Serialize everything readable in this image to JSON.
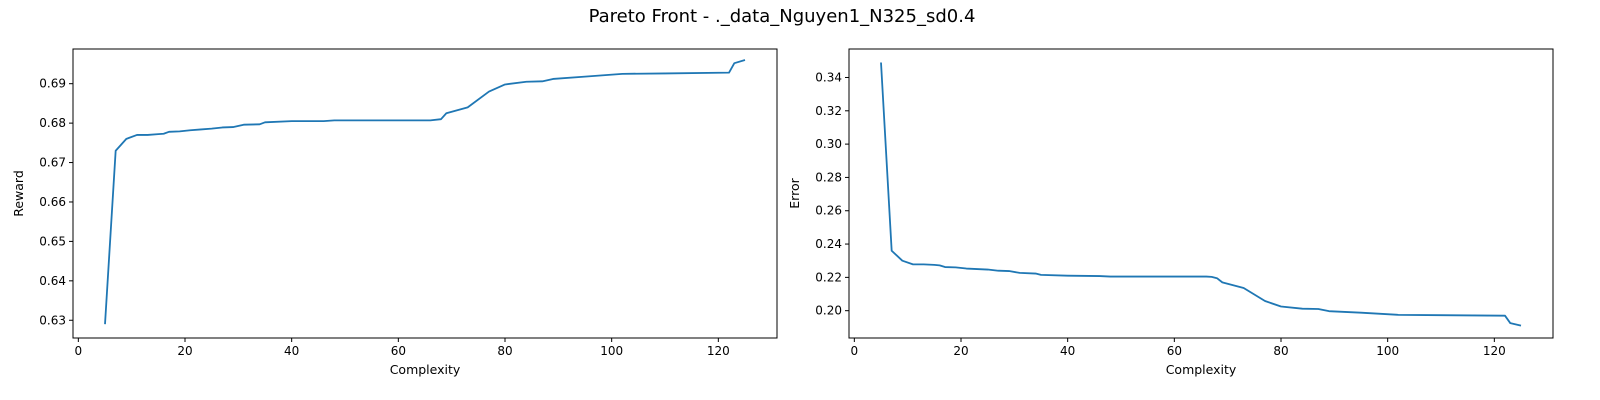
{
  "figure": {
    "title": "Pareto Front - ._data_Nguyen1_N325_sd0.4"
  },
  "colors": {
    "series": "#1f77b4",
    "axis": "#000000",
    "text": "#000000"
  },
  "chart_data": [
    {
      "type": "line",
      "xlabel": "Complexity",
      "ylabel": "Reward",
      "xlim": [
        -1.0,
        131.0
      ],
      "ylim": [
        0.6255,
        0.6988
      ],
      "xticks": [
        0,
        20,
        40,
        60,
        80,
        100,
        120
      ],
      "xtick_labels": [
        "0",
        "20",
        "40",
        "60",
        "80",
        "100",
        "120"
      ],
      "yticks": [
        0.63,
        0.64,
        0.65,
        0.66,
        0.67,
        0.68,
        0.69
      ],
      "ytick_labels": [
        "0.63",
        "0.64",
        "0.65",
        "0.66",
        "0.67",
        "0.68",
        "0.69"
      ],
      "grid": false,
      "series": [
        {
          "x": [
            5,
            7,
            9,
            11,
            13,
            15,
            16,
            17,
            19,
            21,
            23,
            25,
            27,
            29,
            31,
            34,
            35,
            40,
            46,
            48,
            50,
            55,
            60,
            66,
            68,
            69,
            73,
            77,
            80,
            84,
            87,
            89,
            95,
            102,
            110,
            122,
            123,
            125
          ],
          "values": [
            0.629,
            0.673,
            0.676,
            0.677,
            0.677,
            0.6772,
            0.6773,
            0.6778,
            0.6779,
            0.6782,
            0.6784,
            0.6786,
            0.6789,
            0.679,
            0.6796,
            0.6797,
            0.6802,
            0.6805,
            0.6805,
            0.6807,
            0.6807,
            0.6807,
            0.6807,
            0.6807,
            0.681,
            0.6825,
            0.684,
            0.688,
            0.6898,
            0.6905,
            0.6906,
            0.6912,
            0.6918,
            0.6925,
            0.6926,
            0.6928,
            0.6952,
            0.696
          ]
        }
      ]
    },
    {
      "type": "line",
      "xlabel": "Complexity",
      "ylabel": "Error",
      "xlim": [
        -1.0,
        131.0
      ],
      "ylim": [
        0.1836,
        0.3571
      ],
      "xticks": [
        0,
        20,
        40,
        60,
        80,
        100,
        120
      ],
      "xtick_labels": [
        "0",
        "20",
        "40",
        "60",
        "80",
        "100",
        "120"
      ],
      "yticks": [
        0.2,
        0.22,
        0.24,
        0.26,
        0.28,
        0.3,
        0.32,
        0.34
      ],
      "ytick_labels": [
        "0.20",
        "0.22",
        "0.24",
        "0.26",
        "0.28",
        "0.30",
        "0.32",
        "0.34"
      ],
      "grid": false,
      "series": [
        {
          "x": [
            5,
            7,
            9,
            11,
            13,
            15,
            16,
            17,
            19,
            21,
            23,
            25,
            27,
            29,
            31,
            34,
            35,
            40,
            46,
            48,
            50,
            55,
            60,
            66,
            67,
            68,
            69,
            73,
            77,
            80,
            84,
            87,
            89,
            95,
            102,
            110,
            122,
            123,
            125
          ],
          "values": [
            0.349,
            0.236,
            0.23,
            0.2278,
            0.2278,
            0.2275,
            0.2272,
            0.2262,
            0.226,
            0.2253,
            0.225,
            0.2247,
            0.224,
            0.2238,
            0.2227,
            0.2223,
            0.2215,
            0.221,
            0.2208,
            0.2205,
            0.2205,
            0.2205,
            0.2205,
            0.2205,
            0.2203,
            0.2195,
            0.217,
            0.2136,
            0.2058,
            0.2025,
            0.2012,
            0.201,
            0.1997,
            0.1988,
            0.1975,
            0.1973,
            0.197,
            0.1925,
            0.191
          ]
        }
      ]
    }
  ]
}
